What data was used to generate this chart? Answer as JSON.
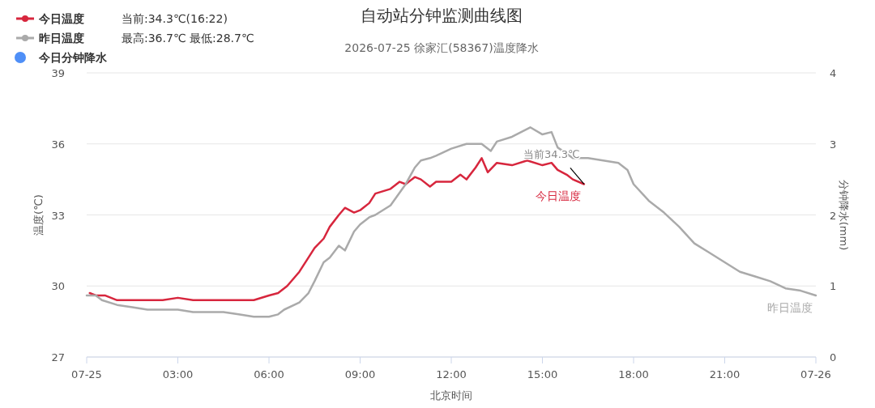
{
  "chart_data": {
    "type": "line",
    "title": "自动站分钟监测曲线图",
    "subtitle": "2026-07-25 徐家汇(58367)温度降水",
    "xlabel": "北京时间",
    "ylabel": "温度(℃)",
    "y2label": "分钟降水(mm)",
    "xlim": [
      0,
      24
    ],
    "xticks": [
      {
        "value": 0,
        "label": "07-25"
      },
      {
        "value": 3,
        "label": "03:00"
      },
      {
        "value": 6,
        "label": "06:00"
      },
      {
        "value": 9,
        "label": "09:00"
      },
      {
        "value": 12,
        "label": "12:00"
      },
      {
        "value": 15,
        "label": "15:00"
      },
      {
        "value": 18,
        "label": "18:00"
      },
      {
        "value": 21,
        "label": "21:00"
      },
      {
        "value": 24,
        "label": "07-26"
      }
    ],
    "ylim": [
      27,
      39
    ],
    "yticks": [
      27,
      30,
      33,
      36,
      39
    ],
    "y2lim": [
      0,
      4
    ],
    "y2ticks": [
      0,
      1,
      2,
      3,
      4
    ],
    "grid": "y",
    "legend": "top left",
    "marker": "none",
    "series": [
      {
        "name": "今日温度",
        "color": "#d7263d",
        "x": [
          0.1,
          0.3,
          0.6,
          1.0,
          1.5,
          2.0,
          2.5,
          3.0,
          3.5,
          4.0,
          4.5,
          5.0,
          5.5,
          6.0,
          6.3,
          6.6,
          7.0,
          7.3,
          7.5,
          7.8,
          8.0,
          8.3,
          8.5,
          8.8,
          9.0,
          9.3,
          9.5,
          10.0,
          10.3,
          10.5,
          10.8,
          11.0,
          11.3,
          11.5,
          12.0,
          12.3,
          12.5,
          12.8,
          13.0,
          13.2,
          13.5,
          14.0,
          14.5,
          15.0,
          15.3,
          15.5,
          15.8,
          16.0,
          16.37
        ],
        "values": [
          29.7,
          29.6,
          29.6,
          29.4,
          29.4,
          29.4,
          29.4,
          29.5,
          29.4,
          29.4,
          29.4,
          29.4,
          29.4,
          29.6,
          29.7,
          30.0,
          30.6,
          31.2,
          31.6,
          32.0,
          32.5,
          33.0,
          33.3,
          33.1,
          33.2,
          33.5,
          33.9,
          34.1,
          34.4,
          34.3,
          34.6,
          34.5,
          34.2,
          34.4,
          34.4,
          34.7,
          34.5,
          35.0,
          35.4,
          34.8,
          35.2,
          35.1,
          35.3,
          35.1,
          35.2,
          34.9,
          34.7,
          34.5,
          34.3
        ]
      },
      {
        "name": "昨日温度",
        "color": "#aaaaaa",
        "x": [
          0.0,
          0.3,
          0.5,
          1.0,
          1.5,
          2.0,
          2.5,
          3.0,
          3.5,
          4.0,
          4.5,
          5.0,
          5.5,
          6.0,
          6.3,
          6.5,
          7.0,
          7.3,
          7.5,
          7.8,
          8.0,
          8.3,
          8.5,
          8.8,
          9.0,
          9.3,
          9.5,
          10.0,
          10.5,
          10.8,
          11.0,
          11.3,
          11.5,
          12.0,
          12.5,
          13.0,
          13.3,
          13.5,
          14.0,
          14.3,
          14.6,
          15.0,
          15.3,
          15.5,
          16.0,
          16.5,
          17.0,
          17.5,
          17.8,
          18.0,
          18.5,
          19.0,
          19.5,
          20.0,
          20.5,
          21.0,
          21.5,
          22.0,
          22.5,
          23.0,
          23.5,
          24.0
        ],
        "values": [
          29.6,
          29.6,
          29.4,
          29.2,
          29.1,
          29.0,
          29.0,
          29.0,
          28.9,
          28.9,
          28.9,
          28.8,
          28.7,
          28.7,
          28.8,
          29.0,
          29.3,
          29.7,
          30.2,
          31.0,
          31.2,
          31.7,
          31.5,
          32.3,
          32.6,
          32.9,
          33.0,
          33.4,
          34.3,
          35.0,
          35.3,
          35.4,
          35.5,
          35.8,
          36.0,
          36.0,
          35.7,
          36.1,
          36.3,
          36.5,
          36.7,
          36.4,
          36.5,
          35.85,
          35.4,
          35.4,
          35.3,
          35.2,
          34.9,
          34.3,
          33.6,
          33.1,
          32.5,
          31.8,
          31.4,
          31.0,
          30.6,
          30.4,
          30.2,
          29.9,
          29.8,
          29.6
        ]
      },
      {
        "name": "今日分钟降水",
        "color": "#4f8ff7",
        "type": "bar"
      }
    ],
    "annotations": [
      "当前:34.3℃(16:22)",
      "最高:36.7℃ 最低:28.7℃",
      {
        "text": "当前34.3℃",
        "x": 16.37,
        "y": 34.3
      }
    ]
  }
}
